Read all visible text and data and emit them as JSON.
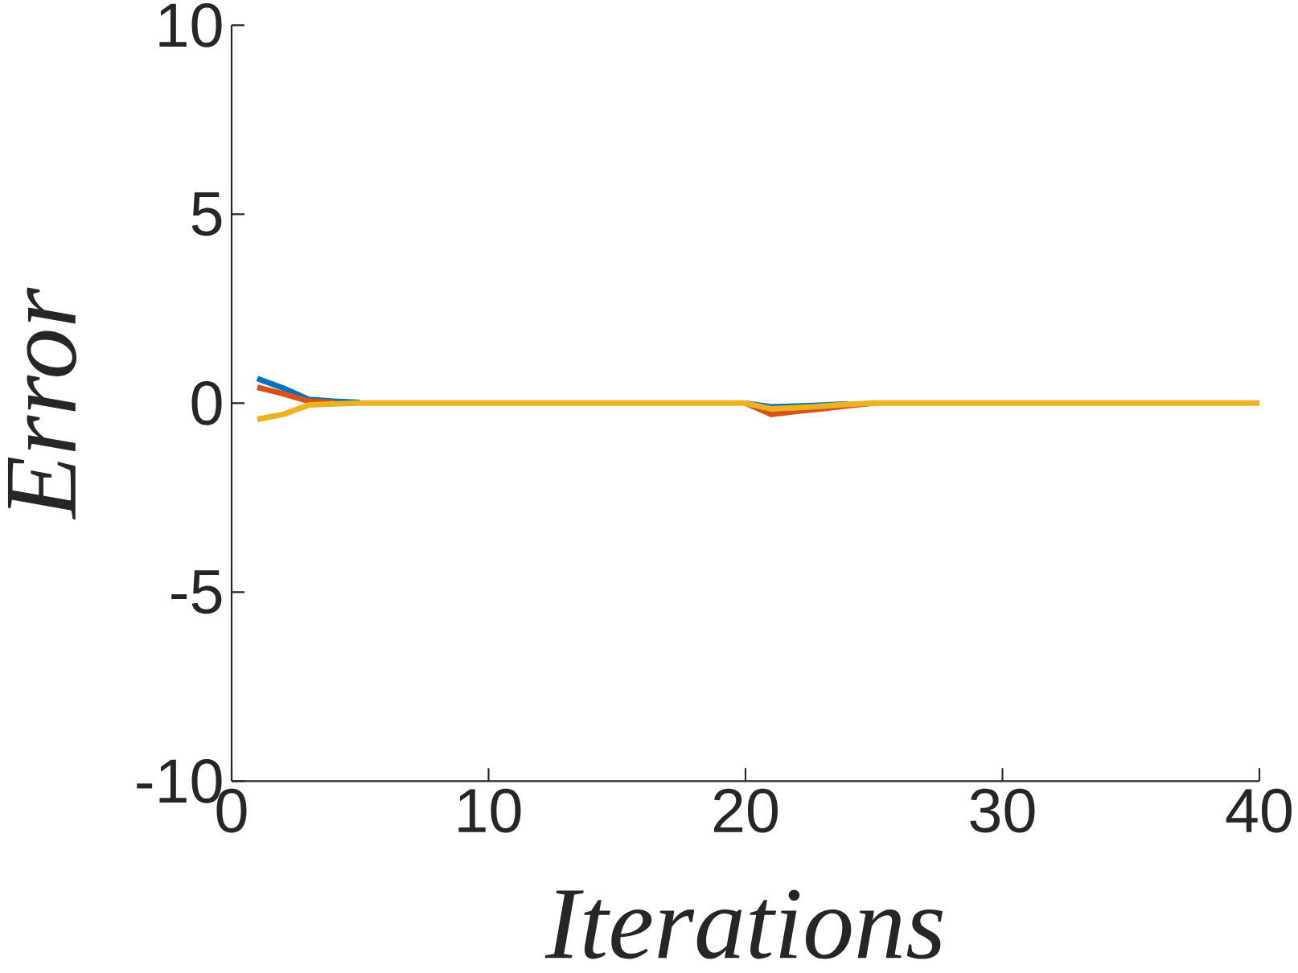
{
  "chart_data": {
    "type": "line",
    "xlabel": "Iterations",
    "ylabel": "Error",
    "x": [
      1,
      2,
      3,
      4,
      5,
      6,
      7,
      8,
      9,
      10,
      11,
      12,
      13,
      14,
      15,
      16,
      17,
      18,
      19,
      20,
      21,
      22,
      23,
      24,
      25,
      26,
      27,
      28,
      29,
      30,
      31,
      32,
      33,
      34,
      35,
      36,
      37,
      38,
      39,
      40
    ],
    "series": [
      {
        "color": "#0072bd",
        "values": [
          0.65,
          0.4,
          0.1,
          0.05,
          0.02,
          null,
          null,
          null,
          null,
          null,
          null,
          null,
          null,
          null,
          null,
          null,
          null,
          null,
          null,
          0,
          -0.1,
          -0.08,
          -0.05,
          -0.02,
          null,
          null,
          null,
          null,
          null,
          null,
          null,
          null,
          null,
          null,
          null,
          null,
          null,
          null,
          null,
          null
        ]
      },
      {
        "color": "#d95319",
        "values": [
          0.42,
          0.25,
          0.05,
          0.02,
          null,
          null,
          null,
          null,
          null,
          null,
          null,
          null,
          null,
          null,
          null,
          null,
          null,
          null,
          null,
          0,
          -0.3,
          -0.22,
          -0.15,
          -0.07,
          0,
          null,
          null,
          null,
          null,
          null,
          null,
          null,
          null,
          null,
          null,
          null,
          null,
          null,
          null,
          null
        ]
      },
      {
        "color": "#edb120",
        "values": [
          -0.43,
          -0.3,
          -0.05,
          -0.02,
          0,
          0,
          0,
          0,
          0,
          0,
          0,
          0,
          0,
          0,
          0,
          0,
          0,
          0,
          0,
          0,
          -0.15,
          -0.12,
          -0.08,
          -0.03,
          0,
          0,
          0,
          0,
          0,
          0,
          0,
          0,
          0,
          0,
          0,
          0,
          0,
          0,
          0,
          0
        ]
      }
    ],
    "xlim": [
      0,
      40
    ],
    "ylim": [
      -10,
      10
    ],
    "xticks": [
      0,
      10,
      20,
      30,
      40
    ],
    "yticks": [
      -10,
      -5,
      0,
      5,
      10
    ],
    "grid": false,
    "marker": "none",
    "line_style": "solid"
  }
}
